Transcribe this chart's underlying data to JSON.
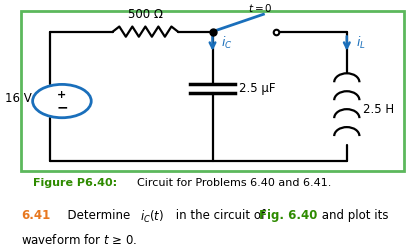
{
  "bg_color": "#ffffff",
  "border_color": "#5cb85c",
  "border_linewidth": 2.0,
  "vs_label": "16 V",
  "resistor_label": "500 Ω",
  "capacitor_label": "2.5 μF",
  "inductor_label": "2.5 H",
  "switch_label": "t = 0",
  "fig_label_bold": "Figure P6.40:",
  "fig_label_normal": " Circuit for Problems 6.40 and 6.41.",
  "problem_num": "6.41",
  "orange_color": "#e87820",
  "green_color": "#2e8b00",
  "blue_color": "#1a6fbb",
  "black_color": "#000000"
}
